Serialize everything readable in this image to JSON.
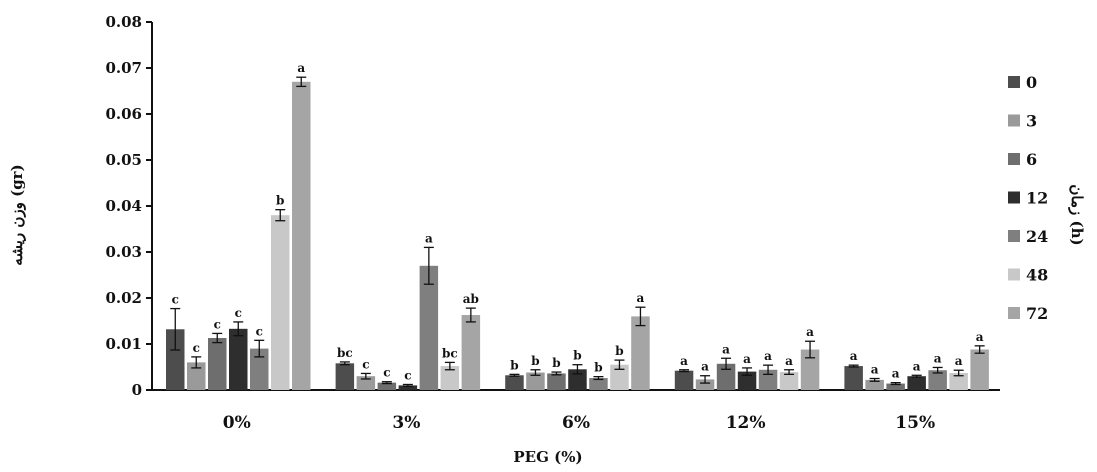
{
  "chart_data": {
    "type": "bar",
    "categories": [
      "0%",
      "3%",
      "6%",
      "12%",
      "15%"
    ],
    "xlabel": "PEG (%)",
    "ylabel": "وزن ریشه (gr)",
    "legend_title": "زمان (h)",
    "legend_position": "right",
    "ylim": [
      0,
      0.08
    ],
    "yticks": [
      "0",
      "0.01",
      "0.02",
      "0.03",
      "0.04",
      "0.05",
      "0.06",
      "0.07",
      "0.08"
    ],
    "series": [
      {
        "name": "0",
        "color": "#4d4d4d",
        "values": [
          0.0132,
          0.0058,
          0.0032,
          0.0042,
          0.0052
        ],
        "errors": [
          0.0045,
          0.0003,
          0.0002,
          0.0002,
          0.0002
        ],
        "labels": [
          "c",
          "bc",
          "b",
          "a",
          "a"
        ]
      },
      {
        "name": "3",
        "color": "#9a9a9a",
        "values": [
          0.006,
          0.003,
          0.0038,
          0.0023,
          0.0022
        ],
        "errors": [
          0.0012,
          0.0006,
          0.0006,
          0.0008,
          0.0003
        ],
        "labels": [
          "c",
          "c",
          "b",
          "a",
          "a"
        ]
      },
      {
        "name": "6",
        "color": "#6e6e6e",
        "values": [
          0.0113,
          0.0016,
          0.0036,
          0.0057,
          0.0014
        ],
        "errors": [
          0.001,
          0.0002,
          0.0003,
          0.0012,
          0.0002
        ],
        "labels": [
          "c",
          "c",
          "b",
          "a",
          "a"
        ]
      },
      {
        "name": "12",
        "color": "#2e2e2e",
        "values": [
          0.0133,
          0.001,
          0.0045,
          0.004,
          0.003
        ],
        "errors": [
          0.0015,
          0.0002,
          0.001,
          0.0008,
          0.0002
        ],
        "labels": [
          "c",
          "c",
          "b",
          "a",
          "a"
        ]
      },
      {
        "name": "24",
        "color": "#7f7f7f",
        "values": [
          0.009,
          0.027,
          0.0026,
          0.0044,
          0.0043
        ],
        "errors": [
          0.0018,
          0.004,
          0.0003,
          0.001,
          0.0006
        ],
        "labels": [
          "c",
          "a",
          "b",
          "a",
          "a"
        ]
      },
      {
        "name": "48",
        "color": "#c8c8c8",
        "values": [
          0.038,
          0.0052,
          0.0055,
          0.0039,
          0.0037
        ],
        "errors": [
          0.0012,
          0.0008,
          0.001,
          0.0005,
          0.0006
        ],
        "labels": [
          "b",
          "bc",
          "b",
          "a",
          "a"
        ]
      },
      {
        "name": "72",
        "color": "#a5a5a5",
        "values": [
          0.067,
          0.0163,
          0.016,
          0.0088,
          0.0088
        ],
        "errors": [
          0.001,
          0.0015,
          0.002,
          0.0018,
          0.0008
        ],
        "labels": [
          "a",
          "ab",
          "a",
          "a",
          "a"
        ]
      }
    ]
  }
}
